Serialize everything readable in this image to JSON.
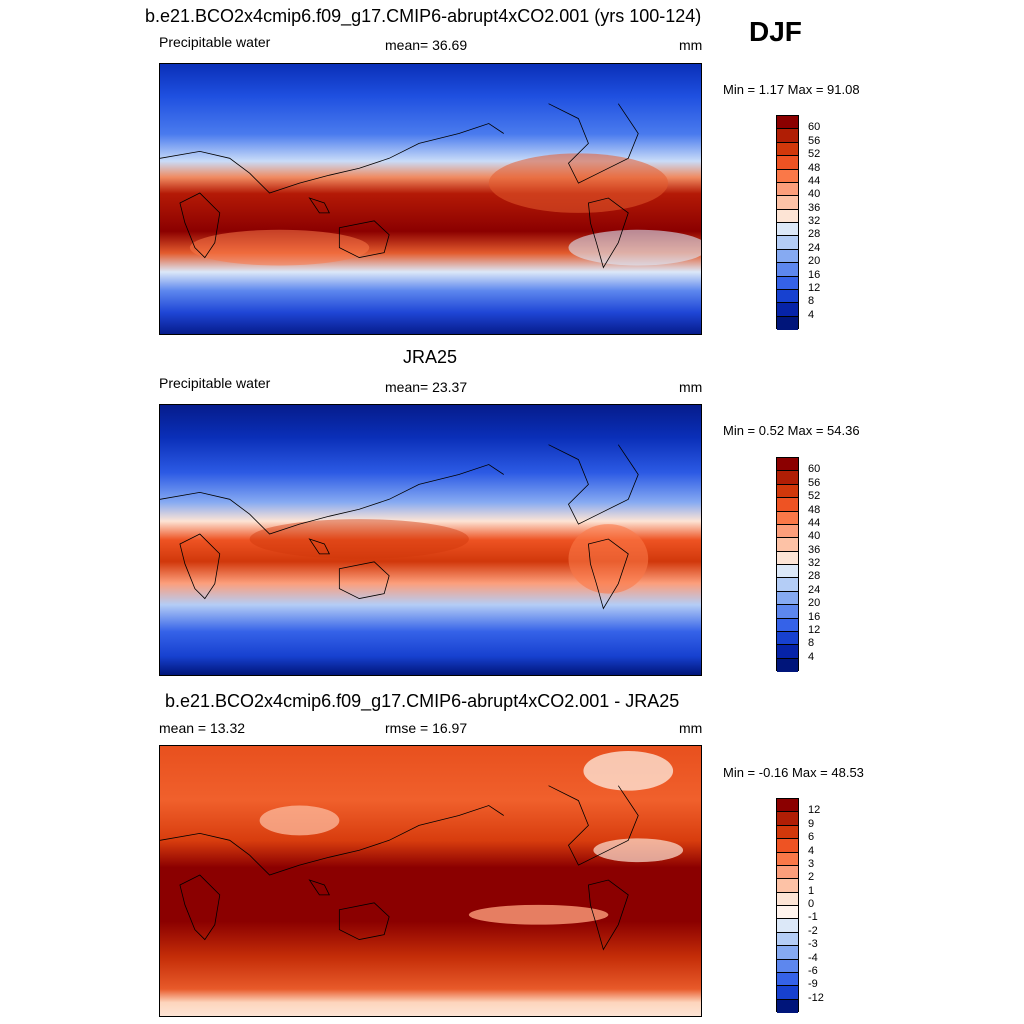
{
  "season": "DJF",
  "panel1": {
    "title": "b.e21.BCO2x4cmip6.f09_g17.CMIP6-abrupt4xCO2.001 (yrs 100-124)",
    "variable": "Precipitable water",
    "stat": "mean=  36.69",
    "units": "mm",
    "minmax": "Min =   1.17 Max =  91.08"
  },
  "panel2": {
    "title": "JRA25",
    "variable": "Precipitable water",
    "stat": "mean=  23.37",
    "units": "mm",
    "minmax": "Min =   0.52 Max =  54.36"
  },
  "panel3": {
    "title": "b.e21.BCO2x4cmip6.f09_g17.CMIP6-abrupt4xCO2.001 - JRA25",
    "stat_left": "mean =  13.32",
    "stat_mid": "rmse =  16.97",
    "units": "mm",
    "minmax": "Min =  -0.16 Max =  48.53"
  },
  "colorbar_abs": {
    "labels": [
      "60",
      "56",
      "52",
      "48",
      "44",
      "40",
      "36",
      "32",
      "28",
      "24",
      "20",
      "16",
      "12",
      "8",
      "4"
    ],
    "colors": [
      "#8b0000",
      "#b01e05",
      "#d1380b",
      "#ee5323",
      "#fa7848",
      "#fc9e7b",
      "#fdc2a6",
      "#fde4d5",
      "#dce8f8",
      "#b4cdf6",
      "#86aaf2",
      "#5d87ee",
      "#3562e8",
      "#1741d0",
      "#0623a8",
      "#00157a"
    ]
  },
  "colorbar_diff": {
    "labels": [
      "12",
      "9",
      "6",
      "4",
      "3",
      "2",
      "1",
      "0",
      "-1",
      "-2",
      "-3",
      "-4",
      "-6",
      "-9",
      "-12"
    ],
    "colors": [
      "#8b0000",
      "#b01e05",
      "#d1380b",
      "#ee5323",
      "#fa7848",
      "#fc9e7b",
      "#fdc2a6",
      "#fde4d5",
      "#fff4ee",
      "#dce8f8",
      "#b4cdf6",
      "#86aaf2",
      "#5d87ee",
      "#3562e8",
      "#1741d0",
      "#00157a"
    ]
  }
}
